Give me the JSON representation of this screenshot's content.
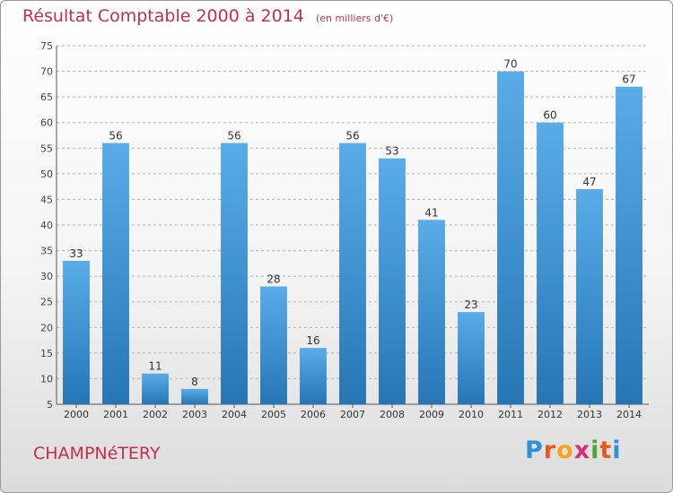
{
  "title": "Résultat Comptable 2000 à 2014",
  "subtitle": "(en milliers d'€)",
  "commune": "CHAMPNéTERY",
  "logo": {
    "letters": [
      "P",
      "r",
      "o",
      "x",
      "i",
      "t",
      "i"
    ],
    "colors": [
      "#2f8fd8",
      "#e65a1e",
      "#f2a51c",
      "#d42f7a",
      "#4aa832",
      "#e65a1e",
      "#2f8fd8"
    ]
  },
  "colors": {
    "bar_top": "#5aace8",
    "bar_bottom": "#2676b6",
    "title": "#c0304d",
    "grid": "#b5b5b5"
  },
  "chart_data": {
    "type": "bar",
    "categories": [
      "2000",
      "2001",
      "2002",
      "2003",
      "2004",
      "2005",
      "2006",
      "2007",
      "2008",
      "2009",
      "2010",
      "2011",
      "2012",
      "2013",
      "2014"
    ],
    "values": [
      33,
      56,
      11,
      8,
      56,
      28,
      16,
      56,
      53,
      41,
      23,
      70,
      60,
      47,
      67
    ],
    "ylim": [
      5,
      75
    ],
    "yticks": [
      5,
      10,
      15,
      20,
      25,
      30,
      35,
      40,
      45,
      50,
      55,
      60,
      65,
      70,
      75
    ],
    "grid": true,
    "xlabel": "",
    "ylabel": ""
  }
}
